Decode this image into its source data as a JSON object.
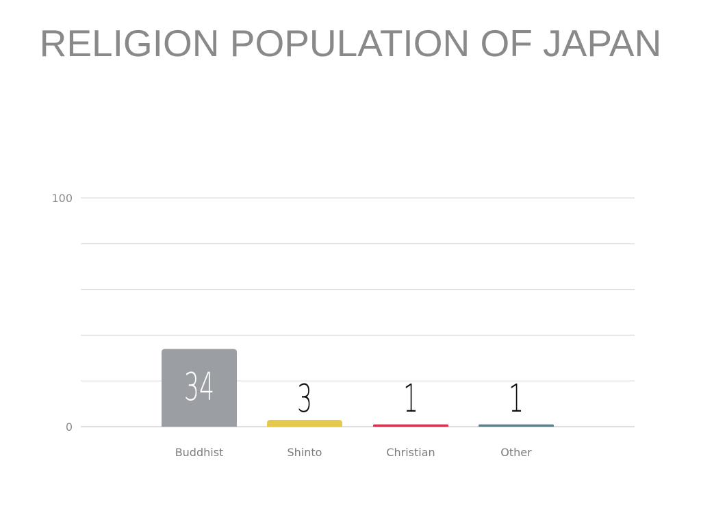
{
  "title": "RELIGION POPULATION OF JAPAN",
  "chart_data": {
    "type": "bar",
    "title": "RELIGION POPULATION OF JAPAN",
    "categories": [
      "Buddhist",
      "Shinto",
      "Christian",
      "Other"
    ],
    "values": [
      34,
      3,
      1,
      1
    ],
    "value_labels": [
      "34",
      "3",
      "1",
      "1"
    ],
    "colors": [
      "#9b9fa3",
      "#e5c84e",
      "#d9344f",
      "#5e8287"
    ],
    "xlabel": "",
    "ylabel": "",
    "ylim": [
      0,
      100
    ],
    "y_tick_labels": [
      "0",
      "100"
    ],
    "grid_lines": 6,
    "grid": true,
    "legend": "none"
  }
}
